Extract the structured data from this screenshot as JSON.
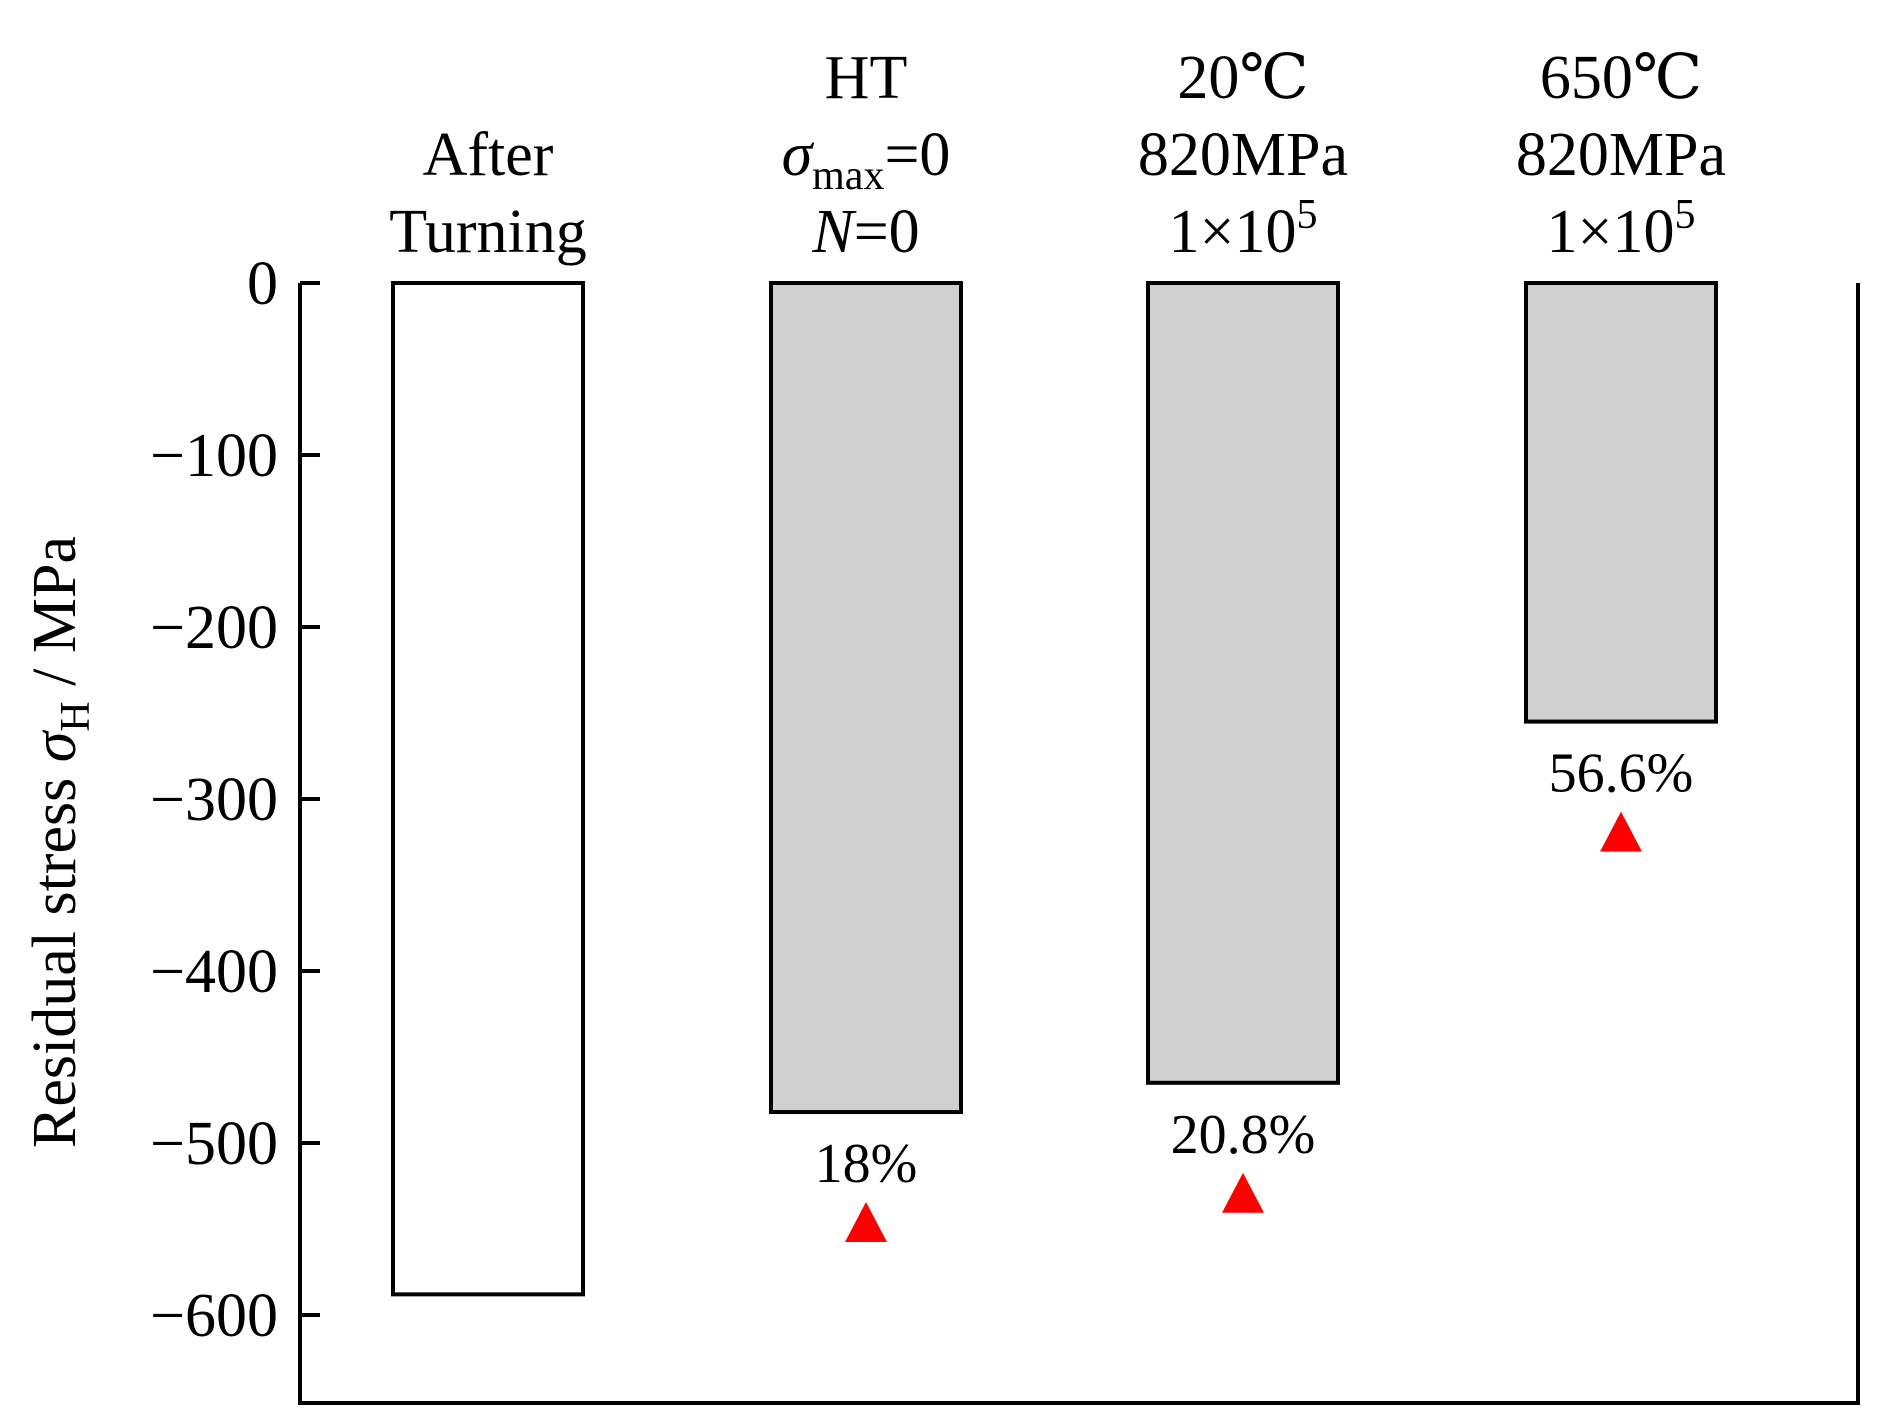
{
  "chart_data": {
    "type": "bar",
    "title": "",
    "xlabel": "",
    "ylabel": {
      "prefix": "Residual stress ",
      "symbol": "σ",
      "subscript": "H",
      "suffix": " / MPa"
    },
    "ylim": [
      -650,
      0
    ],
    "yticks": [
      0,
      -100,
      -200,
      -300,
      -400,
      -500,
      -600
    ],
    "ytick_labels": [
      "0",
      "−100",
      "−200",
      "−300",
      "−400",
      "−500",
      "−600"
    ],
    "categories": [
      {
        "lines": [
          [
            {
              "t": "After"
            }
          ],
          [
            {
              "t": "Turning"
            }
          ]
        ]
      },
      {
        "lines": [
          [
            {
              "t": "HT"
            }
          ],
          [
            {
              "t": "σ",
              "style": "italic"
            },
            {
              "t": "max",
              "shift": "sub"
            },
            {
              "t": "=0"
            }
          ],
          [
            {
              "t": "N",
              "style": "italic"
            },
            {
              "t": "=0"
            }
          ]
        ]
      },
      {
        "lines": [
          [
            {
              "t": "20℃"
            }
          ],
          [
            {
              "t": "820MPa"
            }
          ],
          [
            {
              "t": "1×10"
            },
            {
              "t": "5",
              "shift": "super"
            }
          ]
        ]
      },
      {
        "lines": [
          [
            {
              "t": "650℃"
            }
          ],
          [
            {
              "t": "820MPa"
            }
          ],
          [
            {
              "t": "1×10"
            },
            {
              "t": "5",
              "shift": "super"
            }
          ]
        ]
      }
    ],
    "values": [
      -588,
      -482,
      -465,
      -255
    ],
    "annotations": [
      "",
      "18%",
      "20.8%",
      "56.6%"
    ],
    "bar_fills": [
      "#ffffff",
      "#d0d0d0",
      "#d0d0d0",
      "#d0d0d0"
    ],
    "marker_color": "#ff0000",
    "marker_shape": "triangle-up"
  }
}
